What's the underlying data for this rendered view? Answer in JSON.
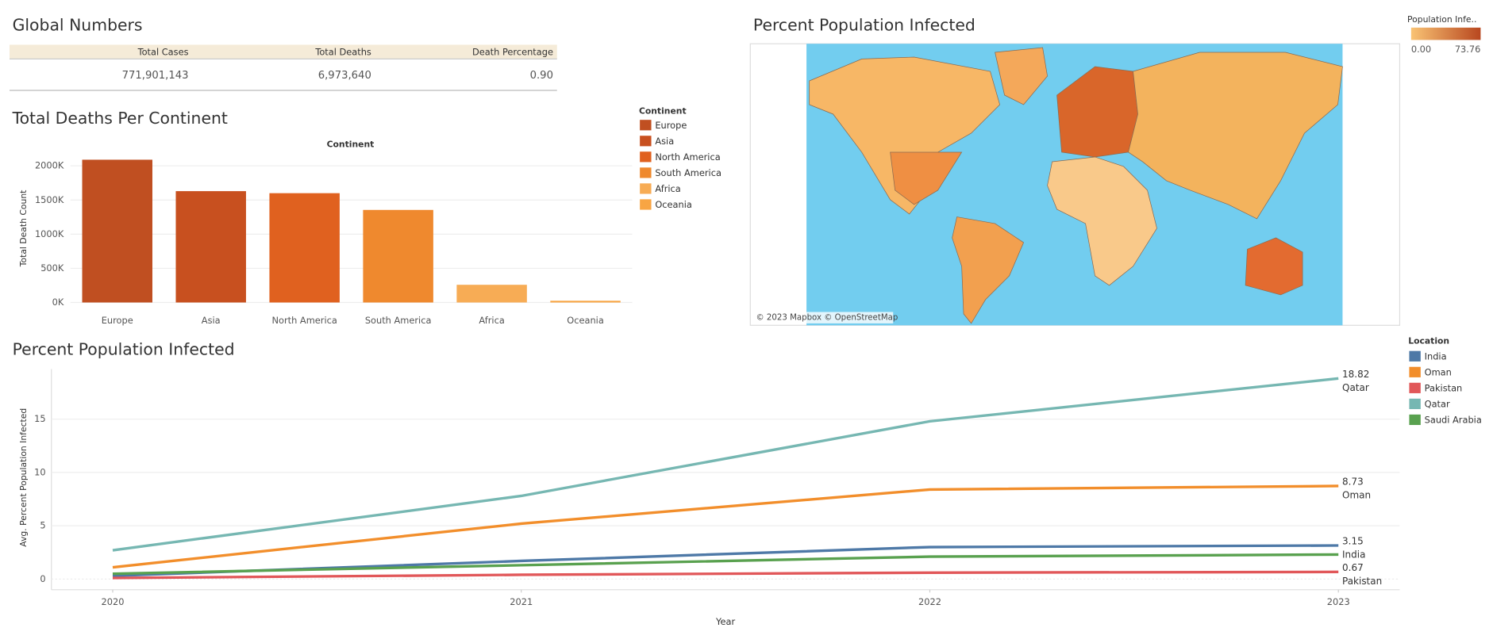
{
  "global_numbers": {
    "title": "Global Numbers",
    "table": {
      "header": [
        "Total Cases",
        "Total Deaths",
        "Death Percentage"
      ],
      "rows": [
        [
          "771,901,143",
          "6,973,640",
          "0.90"
        ]
      ]
    }
  },
  "map": {
    "title": "Percent Population Infected",
    "legend_title": "Population Infe..",
    "legend_ticks": [
      {
        "value": 0,
        "label": "0.00"
      },
      {
        "value": 73.76,
        "label": "73.76"
      }
    ],
    "colors": [
      "#f9c374",
      "#b8471f"
    ],
    "attribution": "© 2023 Mapbox © OpenStreetMap"
  },
  "chart_data": [
    {
      "type": "bar",
      "title": "Total Deaths Per Continent",
      "x_header": "Continent",
      "ylabel": "Total Death Count",
      "legend_title": "Continent",
      "categories": [
        "Europe",
        "Asia",
        "North America",
        "South America",
        "Africa",
        "Oceania"
      ],
      "values": [
        2090000,
        1630000,
        1600000,
        1355000,
        259000,
        25000
      ],
      "colors": [
        "#c04f21",
        "#c8501f",
        "#e0611f",
        "#ef892e",
        "#f7ac55",
        "#f8a543"
      ],
      "ylim": [
        0,
        2200000
      ],
      "yticks": [
        {
          "value": 0,
          "label": "0K"
        },
        {
          "value": 500000,
          "label": "500K"
        },
        {
          "value": 1000000,
          "label": "1000K"
        },
        {
          "value": 1500000,
          "label": "1500K"
        },
        {
          "value": 2000000,
          "label": "2000K"
        }
      ],
      "grid": true
    },
    {
      "type": "line",
      "title": "Percent Population Infected",
      "xlabel": "Year",
      "ylabel": "Avg. Percent Population Infected",
      "legend_title": "Location",
      "x": [
        2020,
        2021,
        2022,
        2023
      ],
      "xlim": [
        2019.85,
        2023.15
      ],
      "xticks": [
        2020,
        2021,
        2022,
        2023
      ],
      "ylim": [
        -1,
        19.7
      ],
      "yticks": [
        0,
        5,
        10,
        15
      ],
      "grid": true,
      "series": [
        {
          "name": "India",
          "color": "#4e79a7",
          "values": [
            0.3,
            1.7,
            3.0,
            3.15
          ],
          "label_last": true
        },
        {
          "name": "Oman",
          "color": "#f28e2b",
          "values": [
            1.1,
            5.2,
            8.4,
            8.73
          ],
          "label_last": true
        },
        {
          "name": "Pakistan",
          "color": "#e15759",
          "values": [
            0.1,
            0.4,
            0.6,
            0.67
          ],
          "label_last": true
        },
        {
          "name": "Qatar",
          "color": "#76b7b2",
          "values": [
            2.7,
            7.8,
            14.8,
            18.82
          ],
          "label_last": true
        },
        {
          "name": "Saudi Arabia",
          "color": "#59a14f",
          "values": [
            0.5,
            1.3,
            2.1,
            2.3
          ],
          "label_last": false
        }
      ]
    }
  ]
}
